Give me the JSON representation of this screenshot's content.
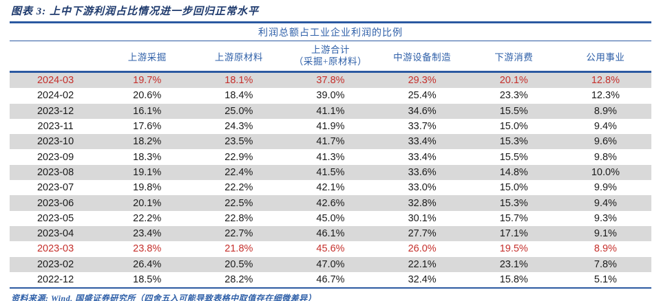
{
  "figure": {
    "title": "图表 3: 上中下游利润占比情况进一步回归正常水平",
    "source_note": "资料来源: Wind, 国盛证券研究所（四舍五入可能导致表格中取值存在细微差异）"
  },
  "colors": {
    "accent_blue": "#2e5fa8",
    "title_blue": "#1e3a6d",
    "highlight_red": "#c52f2b",
    "stripe_gray": "#d9d9d9",
    "body_text": "#1a1a1a"
  },
  "chart_data": {
    "type": "table",
    "title": "利润总额占工业企业利润的比例",
    "columns": [
      "",
      "上游采掘",
      "上游原材料",
      "上游合计（采掘+原材料）",
      "中游设备制造",
      "下游消费",
      "公用事业"
    ],
    "column3_lines": [
      "上游合计",
      "（采掘+原材料）"
    ],
    "highlight_note": "rows 2024-03 and 2023-03 shown in red",
    "rows": [
      {
        "date": "2024-03",
        "values": [
          "19.7%",
          "18.1%",
          "37.8%",
          "29.3%",
          "20.1%",
          "12.8%"
        ],
        "highlight": true
      },
      {
        "date": "2024-02",
        "values": [
          "20.6%",
          "18.4%",
          "39.0%",
          "25.4%",
          "23.3%",
          "12.3%"
        ],
        "highlight": false
      },
      {
        "date": "2023-12",
        "values": [
          "16.1%",
          "25.0%",
          "41.1%",
          "34.6%",
          "15.5%",
          "8.9%"
        ],
        "highlight": false
      },
      {
        "date": "2023-11",
        "values": [
          "17.6%",
          "24.3%",
          "41.9%",
          "33.7%",
          "15.0%",
          "9.4%"
        ],
        "highlight": false
      },
      {
        "date": "2023-10",
        "values": [
          "18.2%",
          "23.5%",
          "41.7%",
          "33.4%",
          "15.3%",
          "9.6%"
        ],
        "highlight": false
      },
      {
        "date": "2023-09",
        "values": [
          "18.3%",
          "22.9%",
          "41.3%",
          "33.4%",
          "15.5%",
          "9.8%"
        ],
        "highlight": false
      },
      {
        "date": "2023-08",
        "values": [
          "19.1%",
          "22.4%",
          "41.5%",
          "33.6%",
          "14.8%",
          "10.0%"
        ],
        "highlight": false
      },
      {
        "date": "2023-07",
        "values": [
          "19.8%",
          "22.2%",
          "42.1%",
          "33.0%",
          "15.0%",
          "9.9%"
        ],
        "highlight": false
      },
      {
        "date": "2023-06",
        "values": [
          "20.1%",
          "22.5%",
          "42.6%",
          "32.8%",
          "15.3%",
          "9.4%"
        ],
        "highlight": false
      },
      {
        "date": "2023-05",
        "values": [
          "22.2%",
          "22.8%",
          "45.0%",
          "30.1%",
          "15.7%",
          "9.3%"
        ],
        "highlight": false
      },
      {
        "date": "2023-04",
        "values": [
          "23.4%",
          "22.7%",
          "46.1%",
          "27.7%",
          "17.1%",
          "9.1%"
        ],
        "highlight": false
      },
      {
        "date": "2023-03",
        "values": [
          "23.8%",
          "21.8%",
          "45.6%",
          "26.0%",
          "19.5%",
          "8.9%"
        ],
        "highlight": true
      },
      {
        "date": "2023-02",
        "values": [
          "26.4%",
          "20.5%",
          "47.0%",
          "22.1%",
          "23.1%",
          "7.8%"
        ],
        "highlight": false
      },
      {
        "date": "2022-12",
        "values": [
          "18.5%",
          "28.2%",
          "46.7%",
          "32.4%",
          "15.8%",
          "5.1%"
        ],
        "highlight": false
      }
    ]
  }
}
